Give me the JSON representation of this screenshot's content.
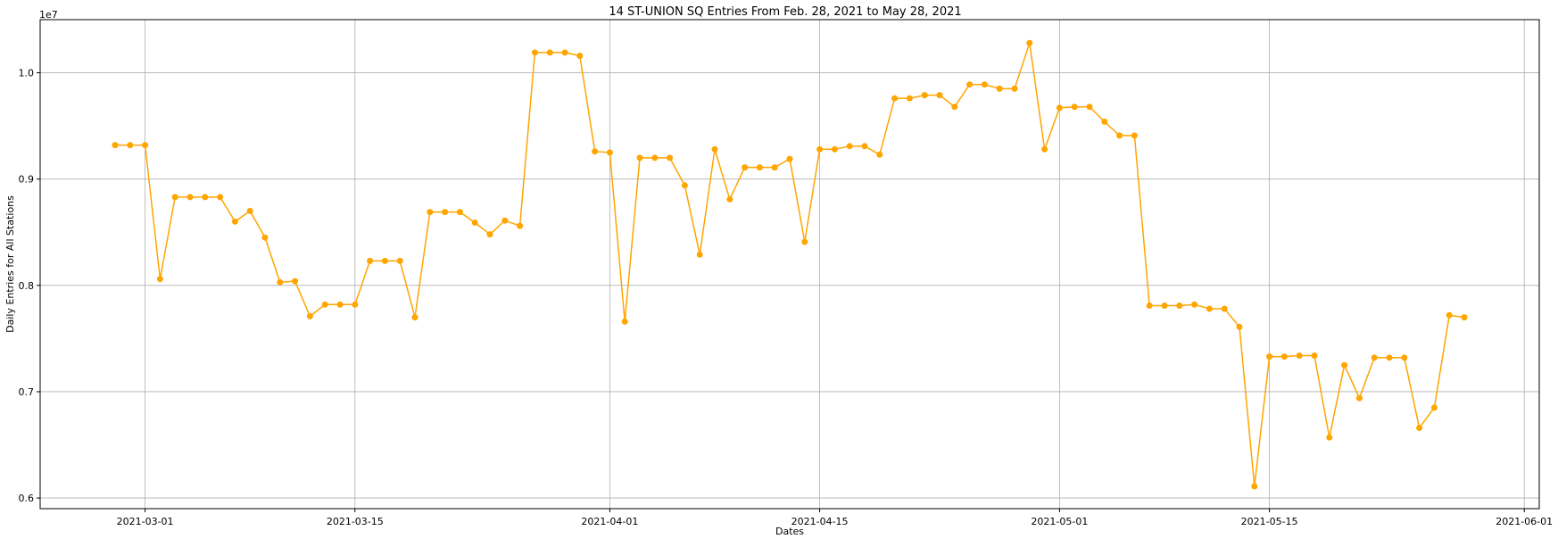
{
  "chart_data": {
    "type": "line",
    "title": "14 ST-UNION SQ Entries From Feb. 28, 2021 to May 28, 2021",
    "xlabel": "Dates",
    "ylabel": "Daily Entries for All Stations",
    "y_scale_label": "1e7",
    "y_multiplier": 10000000,
    "grid": true,
    "line_color": "#ffa500",
    "x_axis": {
      "type": "date",
      "range": [
        "2021-02-22",
        "2021-06-02"
      ],
      "ticks": [
        "2021-03-01",
        "2021-03-15",
        "2021-04-01",
        "2021-04-15",
        "2021-05-01",
        "2021-05-15",
        "2021-06-01"
      ]
    },
    "y_axis": {
      "range": [
        0.59,
        1.05
      ],
      "ticks": [
        "0.6",
        "0.7",
        "0.8",
        "0.9",
        "1.0"
      ]
    },
    "series": [
      {
        "x": [
          "2021-02-27",
          "2021-02-28",
          "2021-03-01",
          "2021-03-02",
          "2021-03-03",
          "2021-03-04",
          "2021-03-05",
          "2021-03-06",
          "2021-03-07",
          "2021-03-08",
          "2021-03-09",
          "2021-03-10",
          "2021-03-11",
          "2021-03-12",
          "2021-03-13",
          "2021-03-14",
          "2021-03-15",
          "2021-03-16",
          "2021-03-17",
          "2021-03-18",
          "2021-03-19",
          "2021-03-20",
          "2021-03-21",
          "2021-03-22",
          "2021-03-23",
          "2021-03-24",
          "2021-03-25",
          "2021-03-26",
          "2021-03-27",
          "2021-03-28",
          "2021-03-29",
          "2021-03-30",
          "2021-03-31",
          "2021-04-01",
          "2021-04-02",
          "2021-04-03",
          "2021-04-04",
          "2021-04-05",
          "2021-04-06",
          "2021-04-07",
          "2021-04-08",
          "2021-04-09",
          "2021-04-10",
          "2021-04-11",
          "2021-04-12",
          "2021-04-13",
          "2021-04-14",
          "2021-04-15",
          "2021-04-16",
          "2021-04-17",
          "2021-04-18",
          "2021-04-19",
          "2021-04-20",
          "2021-04-21",
          "2021-04-22",
          "2021-04-23",
          "2021-04-24",
          "2021-04-25",
          "2021-04-26",
          "2021-04-27",
          "2021-04-28",
          "2021-04-29",
          "2021-04-30",
          "2021-05-01",
          "2021-05-02",
          "2021-05-03",
          "2021-05-04",
          "2021-05-05",
          "2021-05-06",
          "2021-05-07",
          "2021-05-08",
          "2021-05-09",
          "2021-05-10",
          "2021-05-11",
          "2021-05-12",
          "2021-05-13",
          "2021-05-14",
          "2021-05-15",
          "2021-05-16",
          "2021-05-17",
          "2021-05-18",
          "2021-05-19",
          "2021-05-20",
          "2021-05-21",
          "2021-05-22",
          "2021-05-23",
          "2021-05-24",
          "2021-05-25",
          "2021-05-26",
          "2021-05-27",
          "2021-05-28"
        ],
        "values": [
          0.932,
          0.932,
          0.932,
          0.806,
          0.883,
          0.883,
          0.883,
          0.883,
          0.86,
          0.87,
          0.845,
          0.803,
          0.804,
          0.771,
          0.782,
          0.782,
          0.782,
          0.823,
          0.823,
          0.823,
          0.77,
          0.869,
          0.869,
          0.869,
          0.859,
          0.848,
          0.861,
          0.856,
          1.019,
          1.019,
          1.019,
          1.016,
          0.926,
          0.925,
          0.766,
          0.92,
          0.92,
          0.92,
          0.894,
          0.829,
          0.928,
          0.881,
          0.911,
          0.911,
          0.911,
          0.919,
          0.841,
          0.928,
          0.928,
          0.931,
          0.931,
          0.923,
          0.976,
          0.976,
          0.979,
          0.979,
          0.968,
          0.989,
          0.989,
          0.985,
          0.985,
          1.028,
          0.928,
          0.967,
          0.968,
          0.968,
          0.954,
          0.941,
          0.941,
          0.781,
          0.781,
          0.781,
          0.782,
          0.778,
          0.778,
          0.761,
          0.611,
          0.733,
          0.733,
          0.734,
          0.734,
          0.657,
          0.725,
          0.694,
          0.732,
          0.732,
          0.732,
          0.666,
          0.685,
          0.772,
          0.77
        ]
      }
    ]
  }
}
